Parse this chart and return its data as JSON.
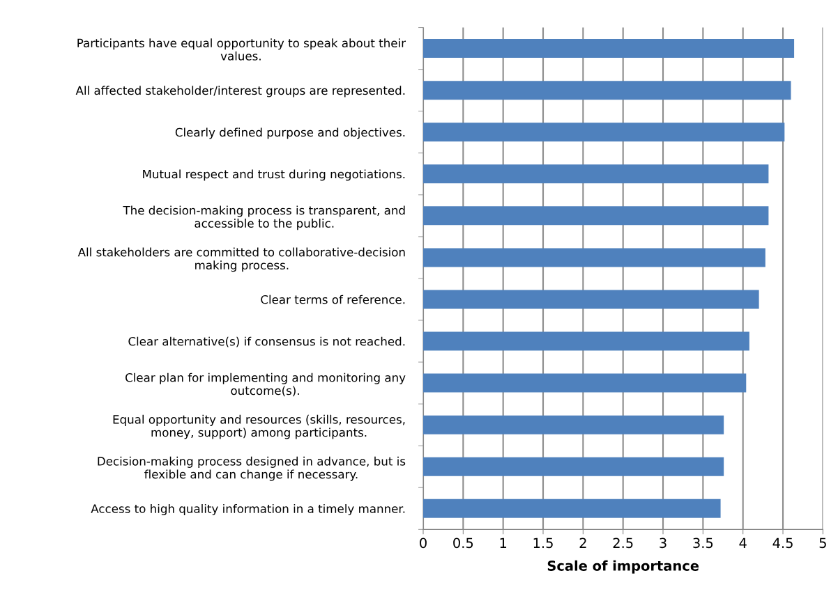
{
  "chart_data": {
    "type": "bar",
    "orientation": "horizontal",
    "xlabel": "Scale of importance",
    "categories": [
      "Participants have equal opportunity to speak about their\nvalues.",
      "All affected stakeholder/interest groups are represented.",
      "Clearly defined purpose and objectives.",
      "Mutual respect and trust during negotiations.",
      "The decision-making process is transparent, and\naccessible to the public.",
      "All stakeholders are committed to collaborative-decision\nmaking process.",
      "Clear terms of reference.",
      "Clear alternative(s) if consensus is not reached.",
      "Clear plan for implementing and monitoring any\noutcome(s).",
      "Equal opportunity and resources (skills, resources,\nmoney, support) among participants.",
      "Decision-making process designed in advance, but is\nflexible and can change if necessary.",
      "Access to high quality information in a timely manner."
    ],
    "values": [
      4.64,
      4.6,
      4.52,
      4.32,
      4.32,
      4.28,
      4.2,
      4.08,
      4.04,
      3.76,
      3.76,
      3.72
    ],
    "color": "#4f81bd",
    "xlim": [
      0,
      5
    ],
    "xticks": [
      0,
      0.5,
      1,
      1.5,
      2,
      2.5,
      3,
      3.5,
      4,
      4.5,
      5
    ],
    "grid": "x",
    "legend": false
  }
}
